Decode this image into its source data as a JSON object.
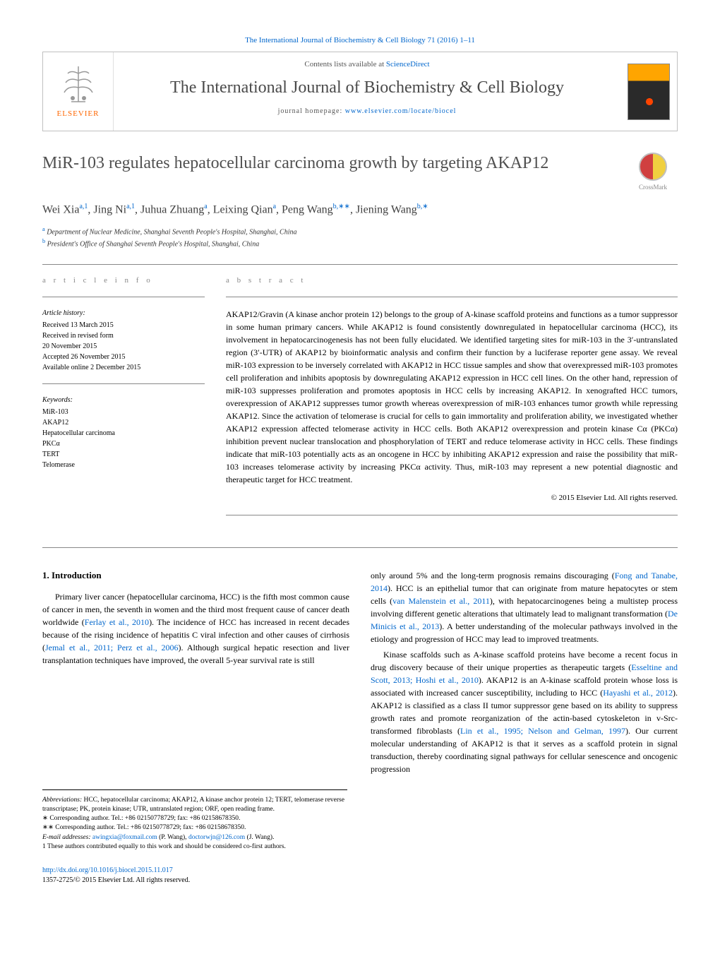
{
  "header": {
    "top_link": "The International Journal of Biochemistry & Cell Biology 71 (2016) 1–11",
    "contents_text": "Contents lists available at ",
    "contents_link": "ScienceDirect",
    "journal_title": "The International Journal of Biochemistry & Cell Biology",
    "homepage_label": "journal homepage: ",
    "homepage_url": "www.elsevier.com/locate/biocel",
    "publisher": "ELSEVIER",
    "crossmark": "CrossMark"
  },
  "article": {
    "title": "MiR-103 regulates hepatocellular carcinoma growth by targeting AKAP12",
    "authors_html": "Wei Xia",
    "authors": [
      {
        "name": "Wei Xia",
        "sup": "a,1"
      },
      {
        "name": "Jing Ni",
        "sup": "a,1"
      },
      {
        "name": "Juhua Zhuang",
        "sup": "a"
      },
      {
        "name": "Leixing Qian",
        "sup": "a"
      },
      {
        "name": "Peng Wang",
        "sup": "b,∗∗"
      },
      {
        "name": "Jiening Wang",
        "sup": "b,∗"
      }
    ],
    "affiliations": [
      {
        "sup": "a",
        "text": "Department of Nuclear Medicine, Shanghai Seventh People's Hospital, Shanghai, China"
      },
      {
        "sup": "b",
        "text": "President's Office of Shanghai Seventh People's Hospital, Shanghai, China"
      }
    ]
  },
  "info": {
    "heading": "a r t i c l e   i n f o",
    "history_label": "Article history:",
    "history": [
      "Received 13 March 2015",
      "Received in revised form",
      "20 November 2015",
      "Accepted 26 November 2015",
      "Available online 2 December 2015"
    ],
    "keywords_label": "Keywords:",
    "keywords": [
      "MiR-103",
      "AKAP12",
      "Hepatocellular carcinoma",
      "PKCα",
      "TERT",
      "Telomerase"
    ]
  },
  "abstract": {
    "heading": "a b s t r a c t",
    "text": "AKAP12/Gravin (A kinase anchor protein 12) belongs to the group of A-kinase scaffold proteins and functions as a tumor suppressor in some human primary cancers. While AKAP12 is found consistently downregulated in hepatocellular carcinoma (HCC), its involvement in hepatocarcinogenesis has not been fully elucidated. We identified targeting sites for miR-103 in the 3′-untranslated region (3′-UTR) of AKAP12 by bioinformatic analysis and confirm their function by a luciferase reporter gene assay. We reveal miR-103 expression to be inversely correlated with AKAP12 in HCC tissue samples and show that overexpressed miR-103 promotes cell proliferation and inhibits apoptosis by downregulating AKAP12 expression in HCC cell lines. On the other hand, repression of miR-103 suppresses proliferation and promotes apoptosis in HCC cells by increasing AKAP12. In xenografted HCC tumors, overexpression of AKAP12 suppresses tumor growth whereas overexpression of miR-103 enhances tumor growth while repressing AKAP12. Since the activation of telomerase is crucial for cells to gain immortality and proliferation ability, we investigated whether AKAP12 expression affected telomerase activity in HCC cells. Both AKAP12 overexpression and protein kinase Cα (PKCα) inhibition prevent nuclear translocation and phosphorylation of TERT and reduce telomerase activity in HCC cells. These findings indicate that miR-103 potentially acts as an oncogene in HCC by inhibiting AKAP12 expression and raise the possibility that miR-103 increases telomerase activity by increasing PKCα activity. Thus, miR-103 may represent a new potential diagnostic and therapeutic target for HCC treatment.",
    "copyright": "© 2015 Elsevier Ltd. All rights reserved."
  },
  "body": {
    "section_heading": "1. Introduction",
    "col1_p1": "Primary liver cancer (hepatocellular carcinoma, HCC) is the fifth most common cause of cancer in men, the seventh in women and the third most frequent cause of cancer death worldwide (Ferlay et al., 2010). The incidence of HCC has increased in recent decades because of the rising incidence of hepatitis C viral infection and other causes of cirrhosis (Jemal et al., 2011; Perz et al., 2006). Although surgical hepatic resection and liver transplantation techniques have improved, the overall 5-year survival rate is still",
    "col2_p1": "only around 5% and the long-term prognosis remains discouraging (Fong and Tanabe, 2014). HCC is an epithelial tumor that can originate from mature hepatocytes or stem cells (van Malenstein et al., 2011), with hepatocarcinogenes being a multistep process involving different genetic alterations that ultimately lead to malignant transformation (De Minicis et al., 2013). A better understanding of the molecular pathways involved in the etiology and progression of HCC may lead to improved treatments.",
    "col2_p2": "Kinase scaffolds such as A-kinase scaffold proteins have become a recent focus in drug discovery because of their unique properties as therapeutic targets (Esseltine and Scott, 2013; Hoshi et al., 2010). AKAP12 is an A-kinase scaffold protein whose loss is associated with increased cancer susceptibility, including to HCC (Hayashi et al., 2012). AKAP12 is classified as a class II tumor suppressor gene based on its ability to suppress growth rates and promote reorganization of the actin-based cytoskeleton in v-Src-transformed fibroblasts (Lin et al., 1995; Nelson and Gelman, 1997). Our current molecular understanding of AKAP12 is that it serves as a scaffold protein in signal transduction, thereby coordinating signal pathways for cellular senescence and oncogenic progression"
  },
  "footnotes": {
    "abbrev_label": "Abbreviations:",
    "abbrev_text": " HCC, hepatocellular carcinoma; AKAP12, A kinase anchor protein 12; TERT, telomerase reverse transcriptase; PK, protein kinase; UTR, untranslated region; ORF, open reading frame.",
    "corr1": "∗ Corresponding author. Tel.: +86 02150778729; fax: +86 02158678350.",
    "corr2": "∗∗ Corresponding author. Tel.: +86 02150778729; fax: +86 02158678350.",
    "email_label": "E-mail addresses: ",
    "email1": "awingxia@foxmail.com",
    "email1_who": " (P. Wang), ",
    "email2": "doctorwjn@126.com",
    "email2_who": " (J. Wang).",
    "equal": "1 These authors contributed equally to this work and should be considered co-first authors."
  },
  "footer": {
    "doi": "http://dx.doi.org/10.1016/j.biocel.2015.11.017",
    "issn": "1357-2725/© 2015 Elsevier Ltd. All rights reserved."
  },
  "colors": {
    "link": "#0066cc",
    "publisher": "#ff6600",
    "heading_gray": "#888888",
    "title_gray": "#505050"
  }
}
